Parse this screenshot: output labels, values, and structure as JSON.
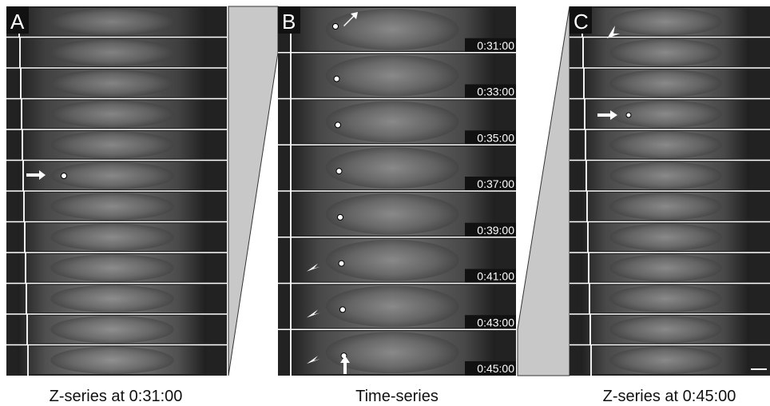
{
  "panels": [
    {
      "label": "A",
      "caption": "Z-series at 0:31:00"
    },
    {
      "label": "B",
      "caption": "Time-series",
      "timestamps": [
        "0:31:00",
        "0:33:00",
        "0:35:00",
        "0:37:00",
        "0:39:00",
        "0:41:00",
        "0:43:00",
        "0:45:00"
      ]
    },
    {
      "label": "C",
      "caption": "Z-series at 0:45:00"
    }
  ]
}
